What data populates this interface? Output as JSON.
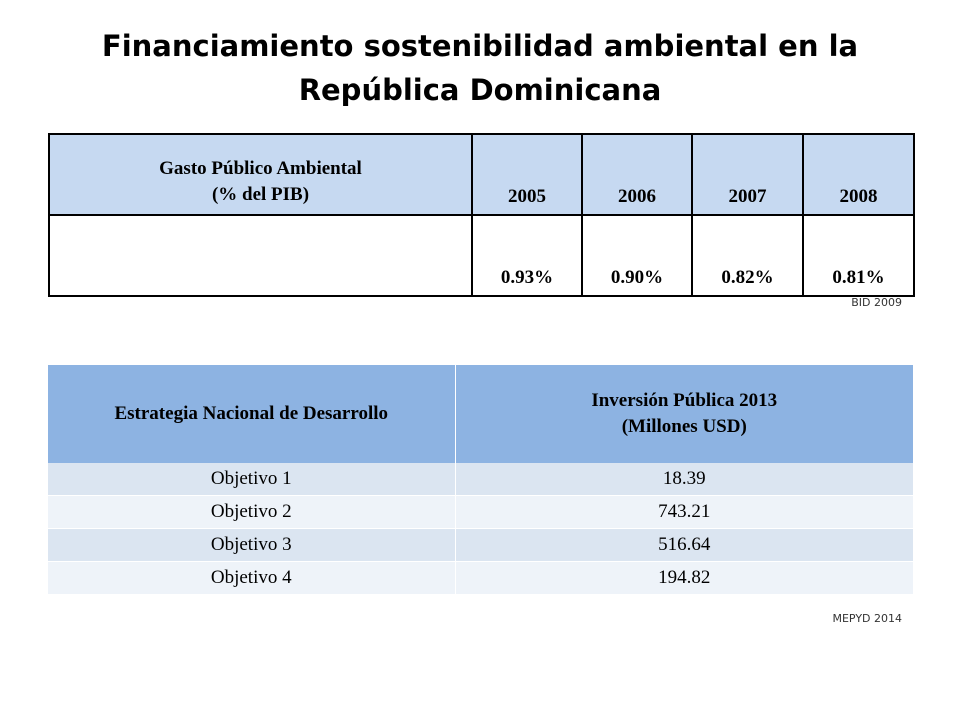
{
  "title": {
    "line1": "Financiamiento sostenibilidad ambiental en la",
    "line2": "República Dominicana"
  },
  "table1": {
    "header_label_line1": "Gasto Público Ambiental",
    "header_label_line2": "(% del PIB)",
    "years": [
      "2005",
      "2006",
      "2007",
      "2008"
    ],
    "values": [
      "0.93%",
      "0.90%",
      "0.82%",
      "0.81%"
    ],
    "source": "BID 2009"
  },
  "table2": {
    "col1_header": "Estrategia Nacional de Desarrollo",
    "col2_header_line1": "Inversión Pública 2013",
    "col2_header_line2": "(Millones USD)",
    "rows": [
      {
        "objective": "Objetivo 1",
        "value": "18.39"
      },
      {
        "objective": "Objetivo 2",
        "value": "743.21"
      },
      {
        "objective": "Objetivo 3",
        "value": "516.64"
      },
      {
        "objective": "Objetivo 4",
        "value": "194.82"
      }
    ],
    "source": "MEPYD 2014"
  }
}
